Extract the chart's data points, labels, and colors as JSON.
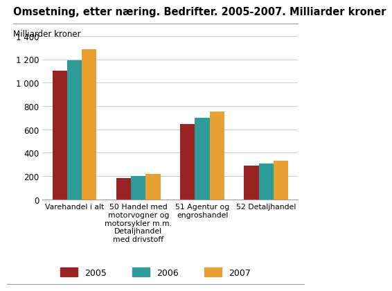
{
  "title": "Omsetning, etter næring. Bedrifter. 2005-2007. Milliarder kroner",
  "ylabel": "Milliarder kroner",
  "categories": [
    "Varehandel i alt",
    "50 Handel med\nmotorvogner og\nmotorsykler m.m.\nDetaljhandel\nmed drivstoff",
    "51 Agentur og\nengroshandel",
    "52 Detaljhandel"
  ],
  "series": {
    "2005": [
      1100,
      185,
      648,
      292
    ],
    "2006": [
      1190,
      202,
      700,
      305
    ],
    "2007": [
      1285,
      220,
      750,
      330
    ]
  },
  "colors": {
    "2005": "#992222",
    "2006": "#2E9B9B",
    "2007": "#E8A030"
  },
  "ylim": [
    0,
    1400
  ],
  "yticks": [
    0,
    200,
    400,
    600,
    800,
    1000,
    1200,
    1400
  ],
  "ytick_labels": [
    "0",
    "200",
    "400",
    "600",
    "800",
    "1 000",
    "1 200",
    "1 400"
  ],
  "background_color": "#ffffff",
  "grid_color": "#cccccc",
  "title_fontsize": 10.5,
  "axis_label_fontsize": 8.5,
  "tick_fontsize": 8.5,
  "legend_fontsize": 9,
  "bar_width": 0.23
}
